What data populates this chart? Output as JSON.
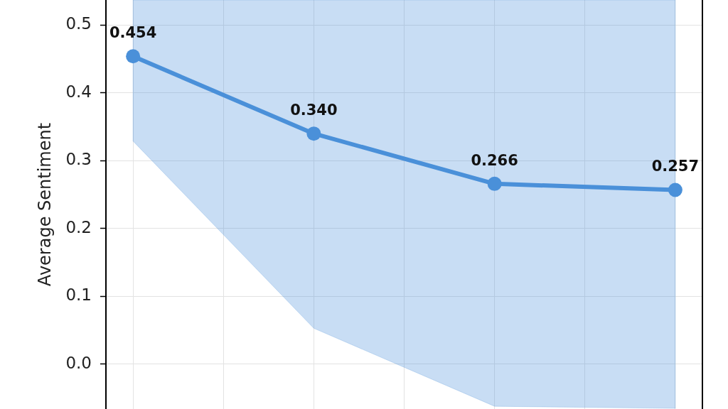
{
  "chart_data": {
    "type": "line",
    "ylabel": "Average Sentiment",
    "categories": [
      null,
      null,
      null,
      null
    ],
    "series": [
      {
        "color": "#4a90d9",
        "values": [
          0.454,
          0.34,
          0.266,
          0.257
        ],
        "lower": [
          0.329,
          0.053,
          -0.062,
          -0.065
        ],
        "upper": [
          0.537,
          0.537,
          0.537,
          0.537
        ],
        "value_labels": [
          "0.454",
          "0.340",
          "0.266",
          "0.257"
        ]
      }
    ],
    "ylim": [
      -0.066,
      0.537
    ],
    "yticks": [
      {
        "value": 0,
        "label": "0.0"
      },
      0.1,
      0.2,
      0.3,
      0.4,
      0.5
    ],
    "grid": true,
    "marker": "circle",
    "line_style": "solid",
    "tick_labels": "y"
  }
}
